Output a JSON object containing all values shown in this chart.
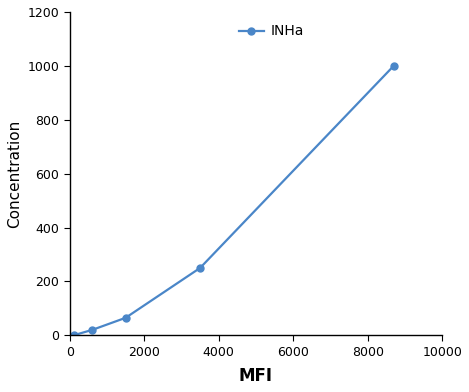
{
  "x": [
    100,
    600,
    1500,
    3500,
    8700
  ],
  "y": [
    0,
    20,
    65,
    250,
    1000
  ],
  "line_color": "#4a86c8",
  "marker_color": "#4a86c8",
  "marker_style": "o",
  "marker_size": 5,
  "line_width": 1.6,
  "legend_label": "INHa",
  "xlabel": "MFI",
  "ylabel": "Concentration",
  "xlabel_fontsize": 12,
  "ylabel_fontsize": 11,
  "xlabel_fontweight": "bold",
  "ylabel_fontweight": "normal",
  "xlim": [
    0,
    10000
  ],
  "ylim": [
    0,
    1200
  ],
  "xticks": [
    0,
    2000,
    4000,
    6000,
    8000,
    10000
  ],
  "yticks": [
    0,
    200,
    400,
    600,
    800,
    1000,
    1200
  ],
  "tick_fontsize": 9,
  "legend_fontsize": 10,
  "background_color": "#ffffff",
  "figsize": [
    4.69,
    3.92
  ],
  "dpi": 100
}
